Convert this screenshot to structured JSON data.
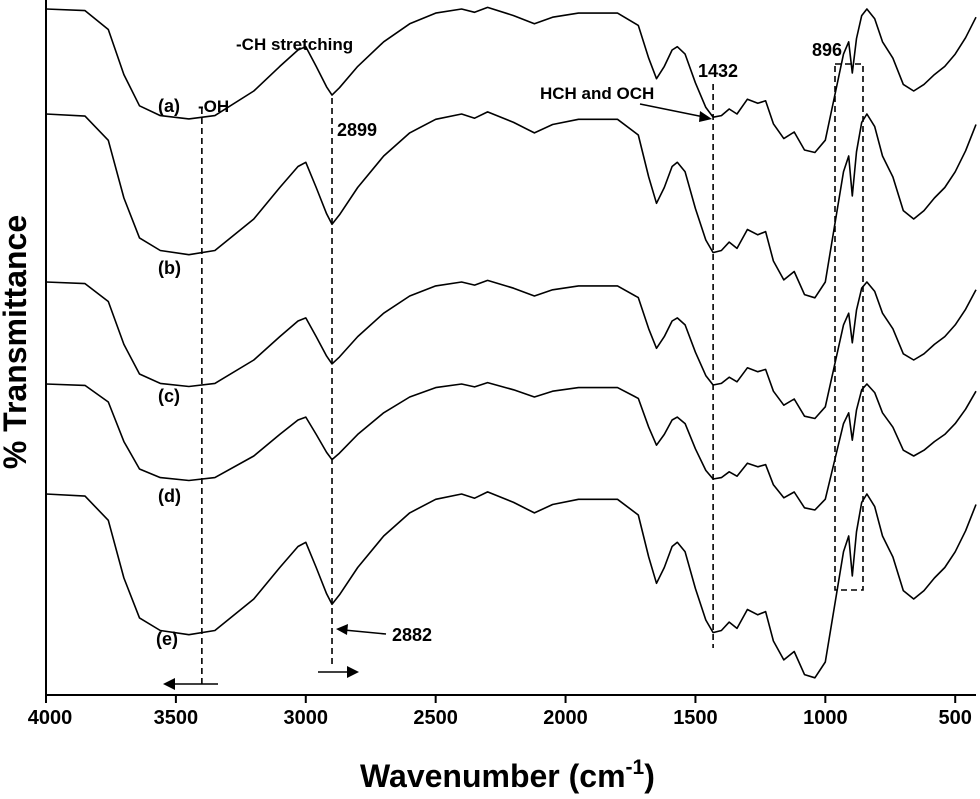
{
  "chart_data": {
    "type": "line",
    "xlabel": "Wavenumber (cm",
    "xlabel_sup": "-1",
    "xlabel_close": ")",
    "ylabel": "% Transmittance",
    "xlim": [
      4000,
      420
    ],
    "x_reversed": true,
    "xticks": [
      4000,
      3500,
      3000,
      2500,
      2000,
      1500,
      1000,
      500
    ],
    "xtick_labels": [
      "4000",
      "3500",
      "3000",
      "2500",
      "2000",
      "1500",
      "1000",
      "500"
    ],
    "yticks_shown": false,
    "grid": false,
    "legend": "none",
    "series_labels": [
      "(a)",
      "(b)",
      "(c)",
      "(d)",
      "(e)"
    ],
    "annotations": {
      "oh": "-OH",
      "ch_stretch": "-CH stretching",
      "peak_2899": "2899",
      "hch_och": "HCH and OCH",
      "peak_1432": "1432",
      "peak_896": "896",
      "peak_2882": "2882"
    },
    "marked_positions": [
      3400,
      2899,
      1432,
      896
    ],
    "series": [
      {
        "label": "(a)",
        "offset": 0
      },
      {
        "label": "(b)",
        "offset": 1
      },
      {
        "label": "(c)",
        "offset": 2
      },
      {
        "label": "(d)",
        "offset": 3
      },
      {
        "label": "(e)",
        "offset": 4
      }
    ]
  }
}
